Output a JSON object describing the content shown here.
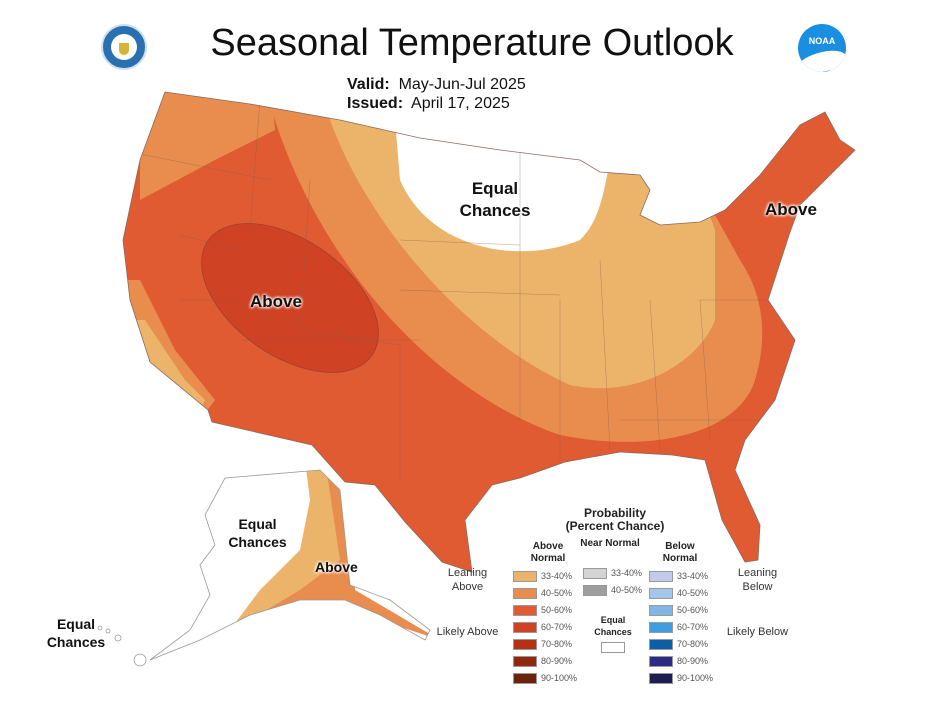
{
  "header": {
    "title": "Seasonal Temperature Outlook",
    "valid_label": "Valid:",
    "valid_value": "May-Jun-Jul 2025",
    "issued_label": "Issued:",
    "issued_value": "April 17, 2025"
  },
  "logos": {
    "left": "Department of Commerce seal",
    "right": "NOAA"
  },
  "map_labels": {
    "conus_ec": "Equal Chances",
    "conus_above_west": "Above",
    "conus_above_ne": "Above",
    "alaska_ec": "Equal Chances",
    "alaska_above": "Above",
    "hawaii_ec": "Equal Chances"
  },
  "legend": {
    "title": "Probability",
    "subtitle": "(Percent Chance)",
    "above_header": "Above Normal",
    "near_header": "Near Normal",
    "below_header": "Below Normal",
    "leaning_above": "Leaning Above",
    "likely_above": "Likely Above",
    "leaning_below": "Leaning Below",
    "likely_below": "Likely Below",
    "equal_chances": "Equal Chances",
    "above": [
      {
        "range": "33-40%",
        "color": "#ebb46a"
      },
      {
        "range": "40-50%",
        "color": "#e88d4e"
      },
      {
        "range": "50-60%",
        "color": "#e05a32"
      },
      {
        "range": "60-70%",
        "color": "#cf4224"
      },
      {
        "range": "70-80%",
        "color": "#b83014"
      },
      {
        "range": "80-90%",
        "color": "#8f280c"
      },
      {
        "range": "90-100%",
        "color": "#6a2208"
      }
    ],
    "near": [
      {
        "range": "33-40%",
        "color": "#d4d4d4"
      },
      {
        "range": "40-50%",
        "color": "#9e9e9e"
      }
    ],
    "below": [
      {
        "range": "33-40%",
        "color": "#c4cbea"
      },
      {
        "range": "40-50%",
        "color": "#a4c6ea"
      },
      {
        "range": "50-60%",
        "color": "#7fb6e6"
      },
      {
        "range": "60-70%",
        "color": "#3d9fdf"
      },
      {
        "range": "70-80%",
        "color": "#0c5fa6"
      },
      {
        "range": "80-90%",
        "color": "#2c2a82"
      },
      {
        "range": "90-100%",
        "color": "#1e1d52"
      }
    ]
  }
}
